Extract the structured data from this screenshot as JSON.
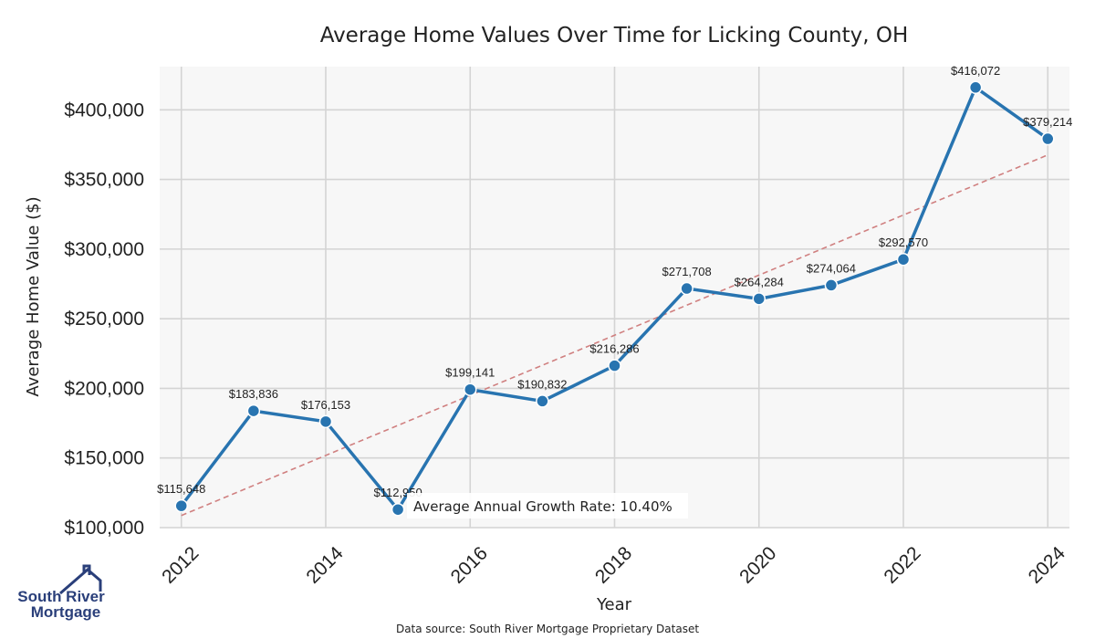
{
  "chart_data": {
    "type": "line",
    "title": "Average Home Values Over Time for Licking County, OH",
    "xlabel": "Year",
    "ylabel": "Average Home Value ($)",
    "x": [
      2012,
      2013,
      2014,
      2015,
      2016,
      2017,
      2018,
      2019,
      2020,
      2021,
      2022,
      2023,
      2024
    ],
    "values": [
      115648,
      183836,
      176153,
      112950,
      199141,
      190832,
      216286,
      271708,
      264284,
      274064,
      292570,
      416072,
      379214
    ],
    "data_labels": [
      "$115,648",
      "$183,836",
      "$176,153",
      "$112,950",
      "$199,141",
      "$190,832",
      "$216,286",
      "$271,708",
      "$264,284",
      "$274,064",
      "$292,570",
      "$416,072",
      "$379,214"
    ],
    "xticks": [
      2012,
      2014,
      2016,
      2018,
      2020,
      2022,
      2024
    ],
    "xtick_labels": [
      "2012",
      "2014",
      "2016",
      "2018",
      "2020",
      "2022",
      "2024"
    ],
    "yticks": [
      100000,
      150000,
      200000,
      250000,
      300000,
      350000,
      400000
    ],
    "ytick_labels": [
      "$100,000",
      "$150,000",
      "$200,000",
      "$250,000",
      "$300,000",
      "$350,000",
      "$400,000"
    ],
    "xlim": [
      2011.7,
      2024.3
    ],
    "ylim": [
      100000,
      431000
    ],
    "trendline": {
      "start": [
        2012,
        108700
      ],
      "end": [
        2024,
        367600
      ],
      "color": "#d08080"
    },
    "series_color": "#2874b0",
    "grid": true,
    "annotation": "Average Annual Growth Rate: 10.40%"
  },
  "source_note": "Data source: South River Mortgage Proprietary Dataset",
  "logo": {
    "line1": "South River",
    "line2": "Mortgage",
    "color": "#2a3f7a"
  }
}
